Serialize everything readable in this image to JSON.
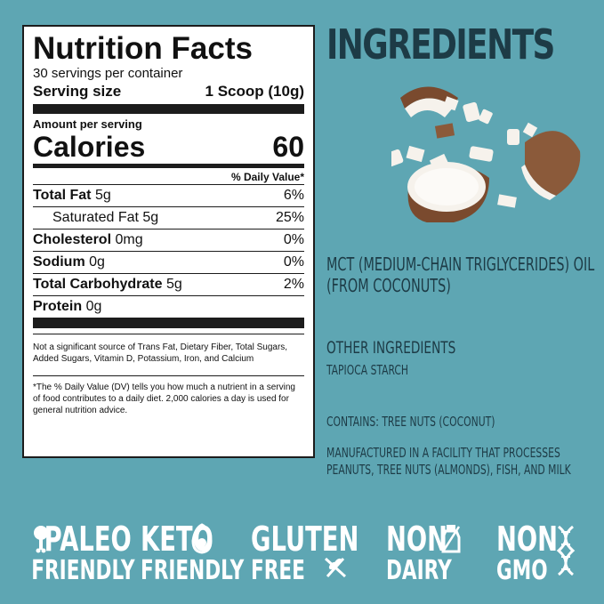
{
  "nutrition": {
    "title": "Nutrition Facts",
    "servings": "30 servings per container",
    "serving_size_label": "Serving size",
    "serving_size_value": "1 Scoop (10g)",
    "amount_per_serving": "Amount per serving",
    "calories_label": "Calories",
    "calories_value": "60",
    "daily_value_header": "% Daily Value*",
    "rows": [
      {
        "label": "Total Fat",
        "amount": "5g",
        "dv": "6%"
      },
      {
        "label": "Saturated Fat 5g",
        "amount": "",
        "dv": "25%"
      },
      {
        "label": "Cholesterol",
        "amount": "0mg",
        "dv": "0%"
      },
      {
        "label": "Sodium",
        "amount": "0g",
        "dv": "0%"
      },
      {
        "label": "Total Carbohydrate",
        "amount": "5g",
        "dv": "2%"
      },
      {
        "label": "Protein",
        "amount": "0g",
        "dv": ""
      }
    ],
    "note1": "Not a significant source of Trans Fat, Dietary Fiber, Total Sugars, Added Sugars, Vitamin D, Potassium, Iron, and Calcium",
    "note2": "*The % Daily Value (DV) tells you how much a nutrient in a serving of food contributes to a daily diet. 2,000 calories a day is used for general nutrition advice."
  },
  "ingredients": {
    "title": "INGREDIENTS",
    "main_line1": "MCT (MEDIUM-CHAIN TRIGLYCERIDES) OIL",
    "main_line2": "(FROM COCONUTS)",
    "other_title": "OTHER INGREDIENTS",
    "other_value": "TAPIOCA STARCH",
    "contains": "CONTAINS: TREE NUTS (COCONUT)",
    "manufactured_line1": "MANUFACTURED IN A FACILITY THAT PROCESSES",
    "manufactured_line2": "PEANUTS, TREE NUTS (ALMONDS), FISH, AND MILK"
  },
  "badges": [
    {
      "line1": "PALEO",
      "line2": "FRIENDLY",
      "icon": "drumstick-icon"
    },
    {
      "line1": "KETO",
      "line2": "FRIENDLY",
      "icon": "avocado-icon"
    },
    {
      "line1": "GLUTEN",
      "line2": "FREE",
      "icon": "wheat-crossed-icon"
    },
    {
      "line1": "NON",
      "line2": "DAIRY",
      "icon": "milk-bottle-icon"
    },
    {
      "line1": "NON",
      "line2": "GMO",
      "icon": "dna-icon"
    }
  ],
  "colors": {
    "background": "#5ea6b3",
    "heading": "#1d3b46",
    "badge_text": "#ffffff"
  }
}
